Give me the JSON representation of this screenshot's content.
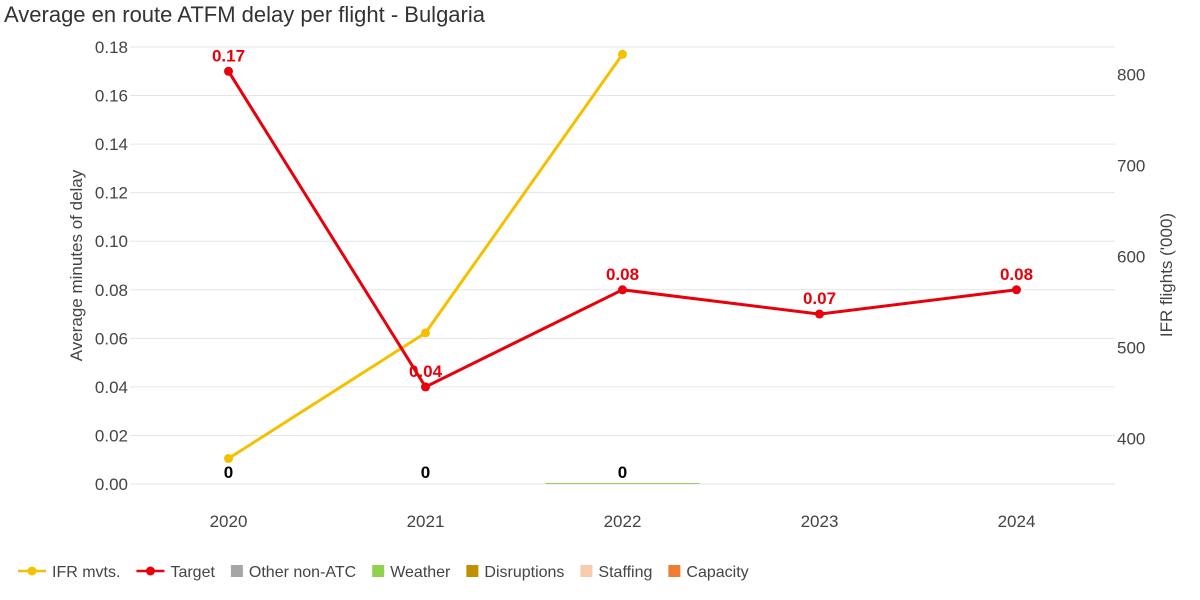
{
  "chart_data": {
    "type": "line",
    "title": "Average en route ATFM delay per flight - Bulgaria",
    "categories": [
      "2020",
      "2021",
      "2022",
      "2023",
      "2024"
    ],
    "y_left": {
      "label": "Average minutes of delay",
      "range": [
        0,
        0.18
      ],
      "ticks": [
        "0.00",
        "0.02",
        "0.04",
        "0.06",
        "0.08",
        "0.10",
        "0.12",
        "0.14",
        "0.16",
        "0.18"
      ]
    },
    "y_right": {
      "label": "IFR flights ('000)",
      "range": [
        350,
        830
      ],
      "ticks": [
        "400",
        "500",
        "600",
        "700",
        "800"
      ]
    },
    "grid": true,
    "legend_position": "bottom-left",
    "series": [
      {
        "name": "IFR mvts.",
        "axis": "right",
        "type": "line",
        "color": "#f5c000",
        "values": [
          378,
          516,
          822,
          null,
          null
        ],
        "labels": [
          null,
          null,
          null,
          null,
          null
        ]
      },
      {
        "name": "Target",
        "axis": "left",
        "type": "line",
        "color": "#e8000b",
        "values": [
          0.17,
          0.04,
          0.08,
          0.07,
          0.08
        ],
        "labels": [
          "0.17",
          "0.04",
          "0.08",
          "0.07",
          "0.08"
        ]
      },
      {
        "name": "Other non-ATC",
        "axis": "left",
        "type": "bar",
        "color": "#a6a6a6",
        "values": [
          0,
          0,
          0,
          null,
          null
        ]
      },
      {
        "name": "Weather",
        "axis": "left",
        "type": "bar",
        "color": "#92d050",
        "values": [
          0,
          0,
          0,
          null,
          null
        ]
      },
      {
        "name": "Disruptions",
        "axis": "left",
        "type": "bar",
        "color": "#bf9000",
        "values": [
          0,
          0,
          0,
          null,
          null
        ]
      },
      {
        "name": "Staffing",
        "axis": "left",
        "type": "bar",
        "color": "#f8cbad",
        "values": [
          0,
          0,
          0,
          null,
          null
        ]
      },
      {
        "name": "Capacity",
        "axis": "left",
        "type": "bar",
        "color": "#ed7d31",
        "values": [
          0,
          0,
          0,
          null,
          null
        ]
      }
    ],
    "bar_total_labels": [
      "0",
      "0",
      "0",
      null,
      null
    ]
  }
}
